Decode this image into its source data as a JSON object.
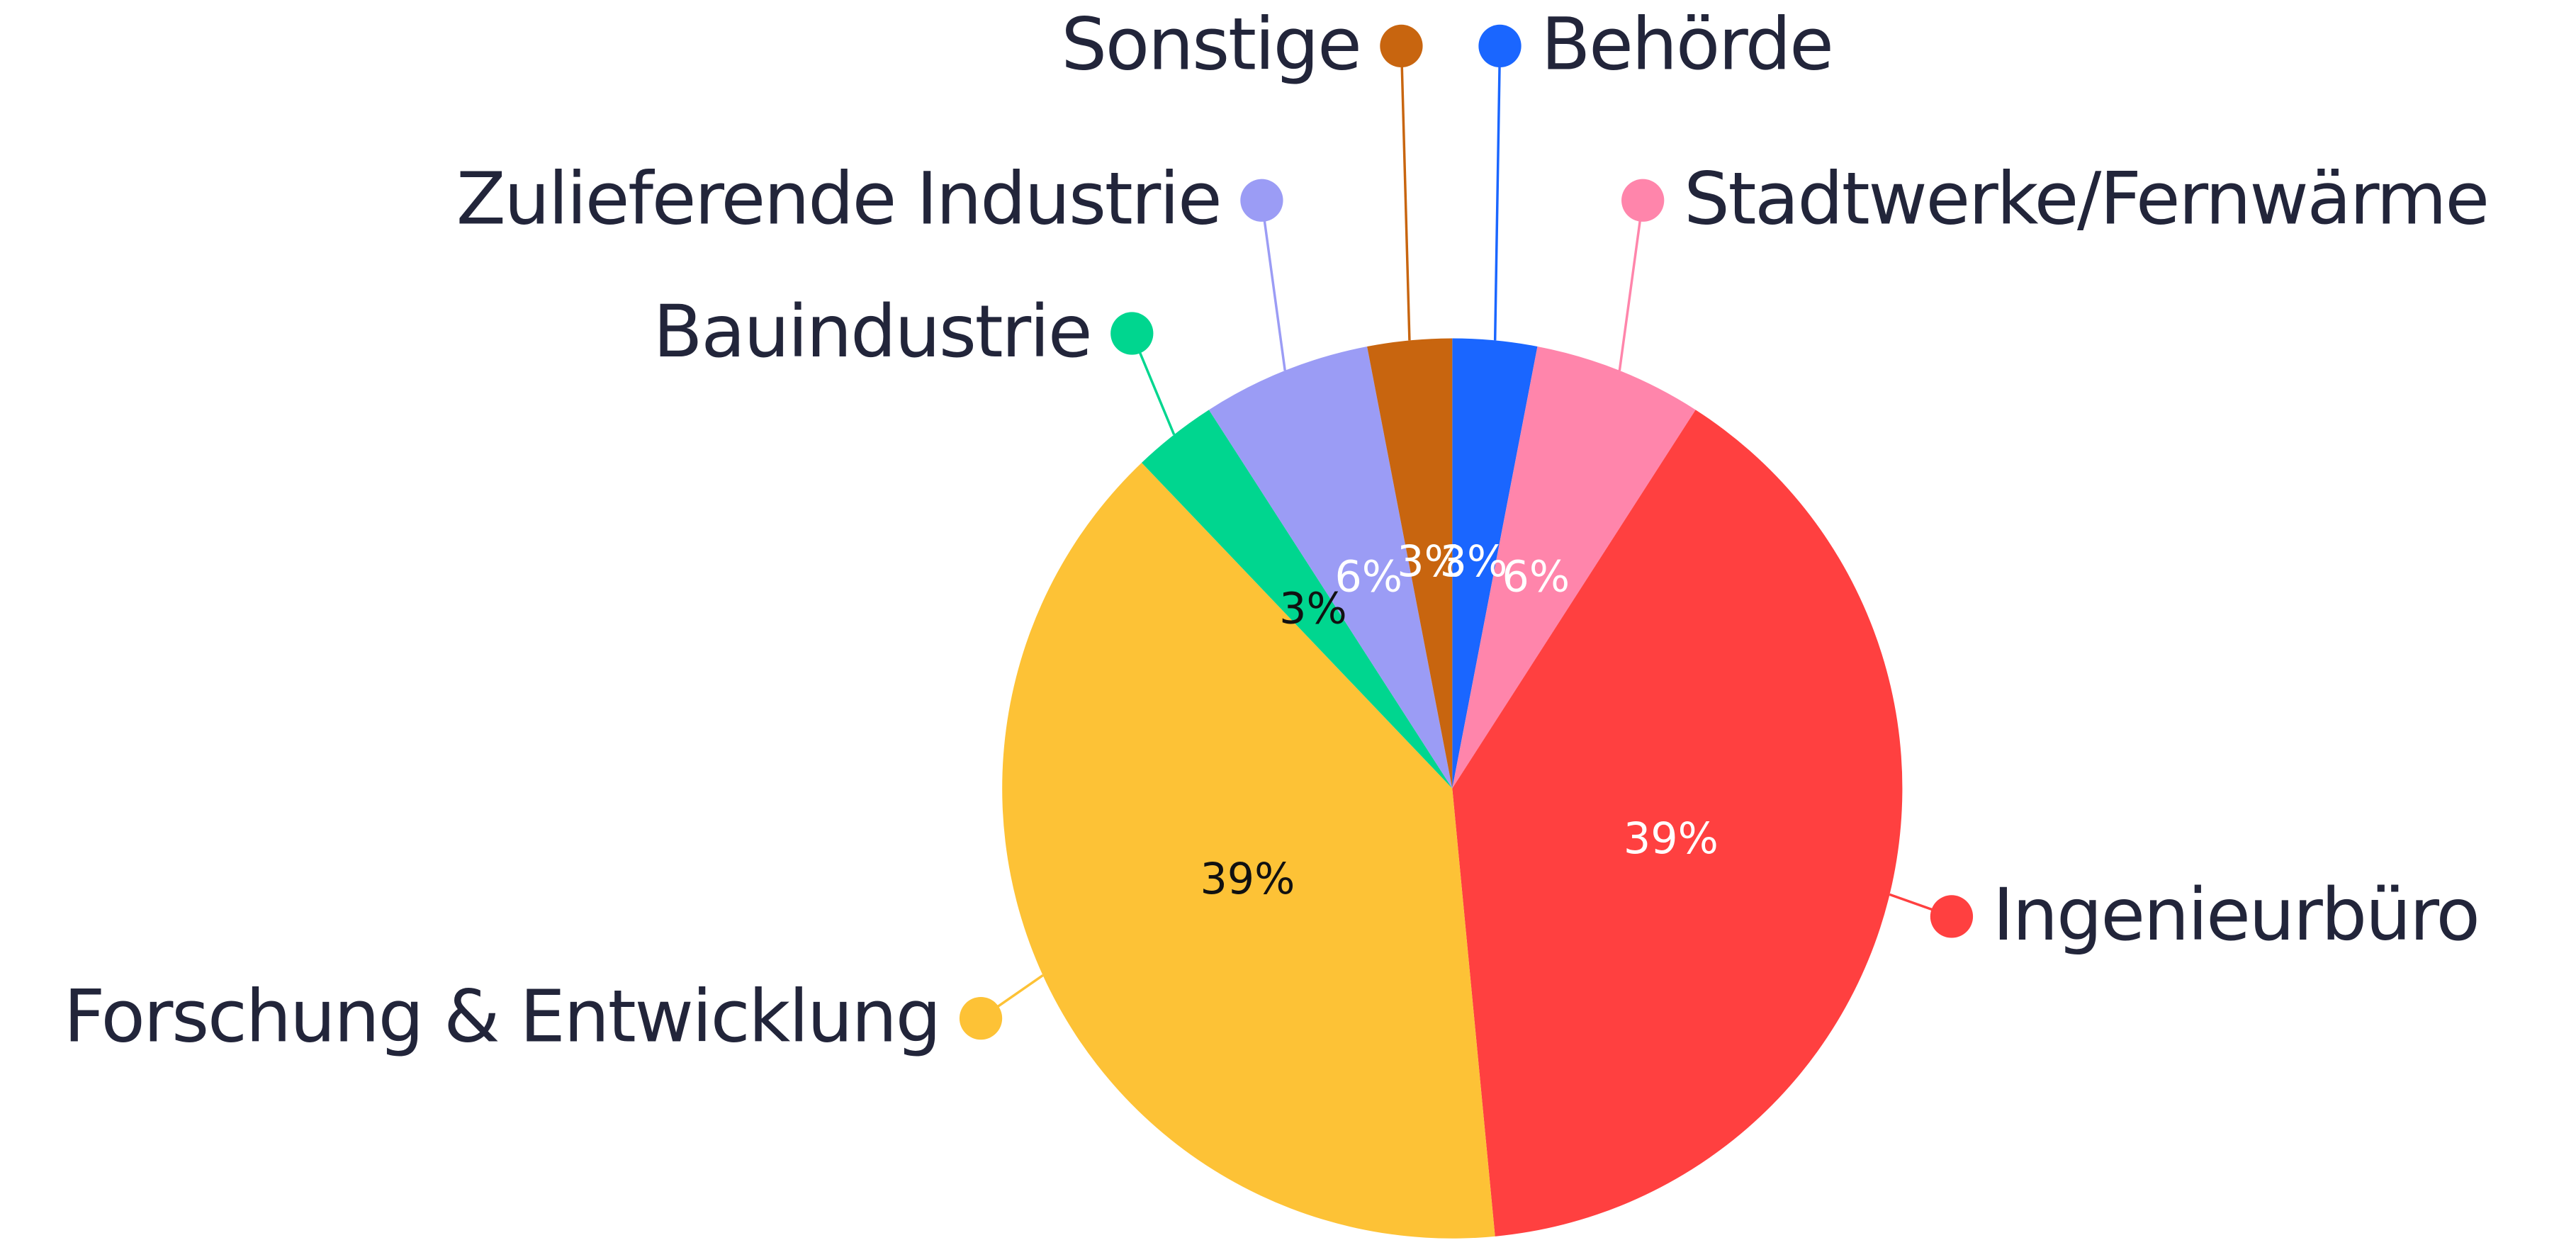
{
  "chart_data": {
    "type": "pie",
    "categories": [
      "Behörde",
      "Stadtwerke/Fernwärme",
      "Ingenieurbüro",
      "Forschung & Entwicklung",
      "Bauindustrie",
      "Zulieferende Industrie",
      "Sonstige"
    ],
    "values": [
      3,
      6,
      39,
      39,
      3,
      6,
      3
    ],
    "value_labels": [
      "3%",
      "6%",
      "39%",
      "39%",
      "3%",
      "6%",
      "3%"
    ],
    "colors": [
      "#1a66ff",
      "#ff85ab",
      "#ff4040",
      "#fdc236",
      "#00d68f",
      "#9b9cf5",
      "#c8650f"
    ]
  }
}
